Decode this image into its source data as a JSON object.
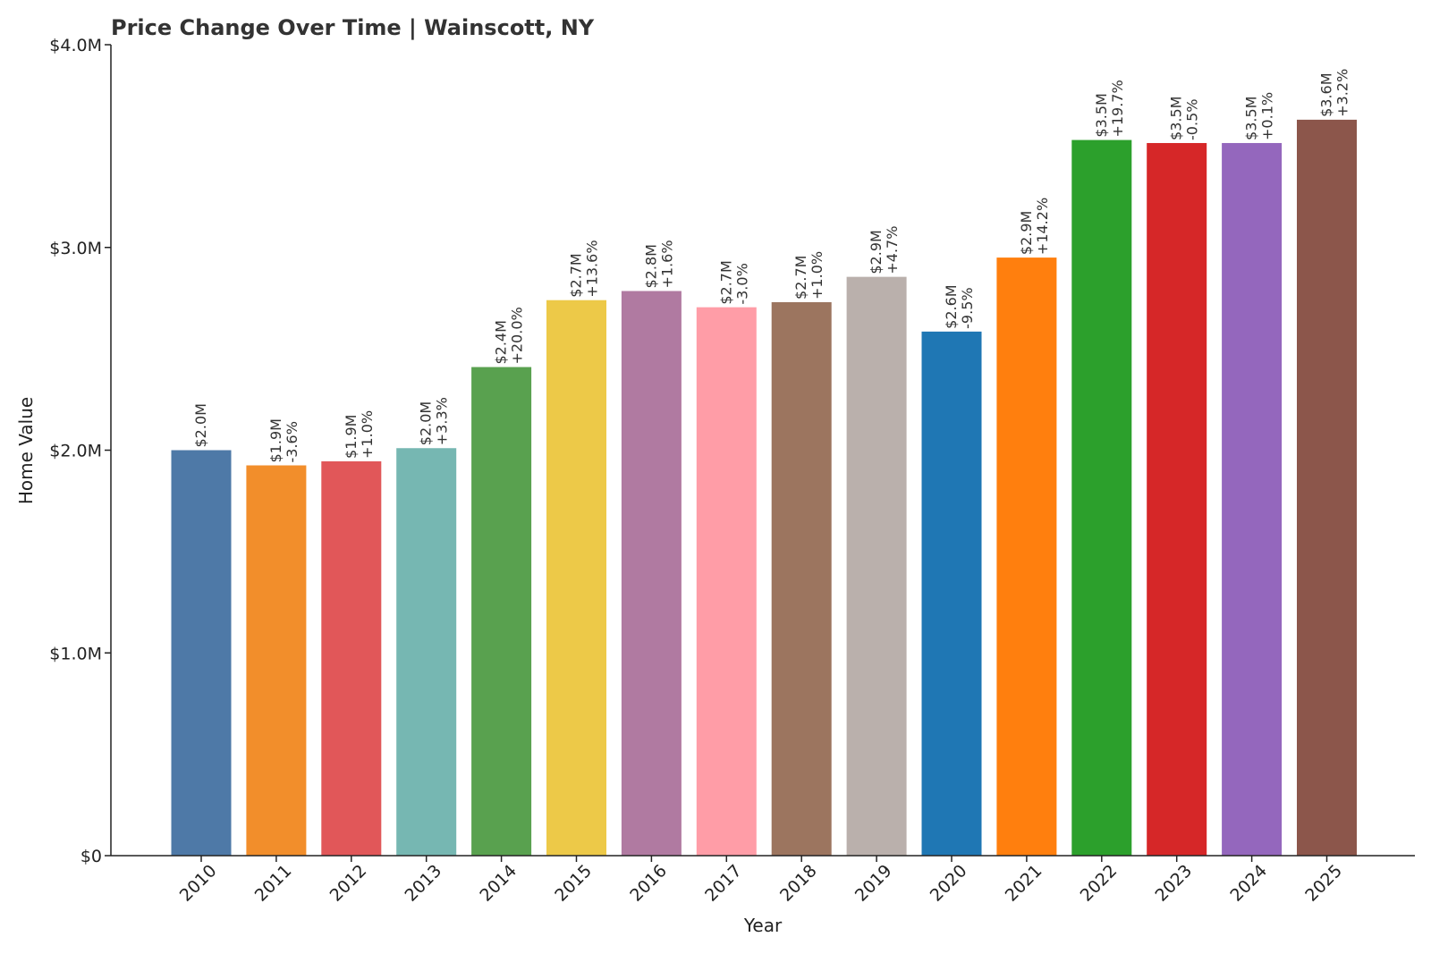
{
  "chart_data": {
    "type": "bar",
    "title": "Price Change Over Time | Wainscott, NY",
    "xlabel": "Year",
    "ylabel": "Home Value",
    "ylim": [
      0,
      4000000
    ],
    "yticks": [
      0,
      1000000,
      2000000,
      3000000,
      4000000
    ],
    "ytick_labels": [
      "$0",
      "$1.0M",
      "$2.0M",
      "$3.0M",
      "$4.0M"
    ],
    "grid": false,
    "categories": [
      "2010",
      "2011",
      "2012",
      "2013",
      "2014",
      "2015",
      "2016",
      "2017",
      "2018",
      "2019",
      "2020",
      "2021",
      "2022",
      "2023",
      "2024",
      "2025"
    ],
    "values": [
      2000000,
      1925000,
      1945000,
      2010000,
      2410000,
      2740000,
      2785000,
      2705000,
      2730000,
      2855000,
      2585000,
      2950000,
      3530000,
      3515000,
      3515000,
      3630000
    ],
    "value_labels": [
      "$2.0M",
      "$1.9M",
      "$1.9M",
      "$2.0M",
      "$2.4M",
      "$2.7M",
      "$2.8M",
      "$2.7M",
      "$2.7M",
      "$2.9M",
      "$2.6M",
      "$2.9M",
      "$3.5M",
      "$3.5M",
      "$3.5M",
      "$3.6M"
    ],
    "change_labels": [
      "",
      "-3.6%",
      "+1.0%",
      "+3.3%",
      "+20.0%",
      "+13.6%",
      "+1.6%",
      "-3.0%",
      "+1.0%",
      "+4.7%",
      "-9.5%",
      "+14.2%",
      "+19.7%",
      "-0.5%",
      "+0.1%",
      "+3.2%"
    ],
    "colors": [
      "#4e79a7",
      "#f28e2b",
      "#e15759",
      "#76b7b2",
      "#59a14f",
      "#edc948",
      "#b07aa1",
      "#ff9da7",
      "#9c755f",
      "#bab0ac",
      "#1f77b4",
      "#ff7f0e",
      "#2ca02c",
      "#d62728",
      "#9467bd",
      "#8c564b"
    ]
  }
}
